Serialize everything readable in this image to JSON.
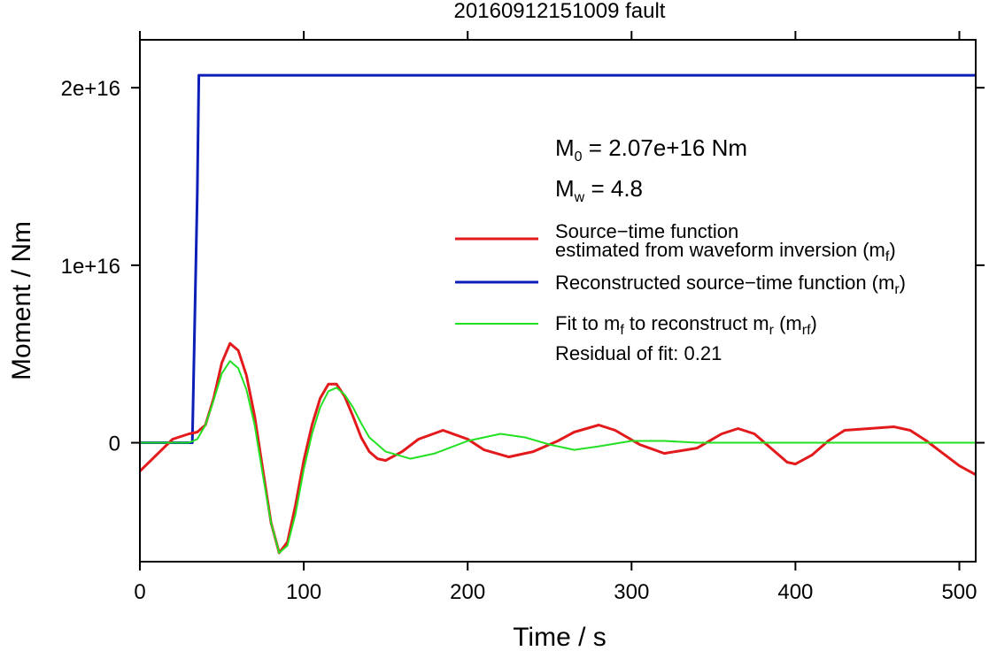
{
  "chart_data": {
    "type": "line",
    "title": "20160912151009 fault",
    "xlabel": "Time / s",
    "ylabel": "Moment / Nm",
    "xlim": [
      0,
      510
    ],
    "ylim": [
      -6700000000000000.0,
      2.27e+16
    ],
    "x_ticks": [
      0,
      100,
      200,
      300,
      400,
      500
    ],
    "x_tick_labels": [
      "0",
      "100",
      "200",
      "300",
      "400",
      "500"
    ],
    "y_ticks": [
      0,
      1e+16,
      2e+16
    ],
    "y_tick_labels": [
      "0",
      "1e+16",
      "2e+16"
    ],
    "grid": false,
    "legend_position": "right",
    "annotations": {
      "m0_prefix": "M",
      "m0_sub": "0",
      "m0_value": " = 2.07e+16 Nm",
      "mw_prefix": "M",
      "mw_sub": "w",
      "mw_value": " = 4.8",
      "residual": "Residual of fit: 0.21"
    },
    "legend": [
      {
        "color": "#e31a1c",
        "line1": "Source−time function",
        "line2_main": "estimated from waveform inversion (m",
        "line2_sub": "f",
        "line2_end": ")"
      },
      {
        "color": "#0b1fb8",
        "line1_main": "Reconstructed source−time function (m",
        "line1_sub": "r",
        "line1_end": ")"
      },
      {
        "color": "#22e022",
        "part1": "Fit to m",
        "sub1": "f",
        "part2": " to reconstruct m",
        "sub2": "r",
        "part3": " (m",
        "sub3": "rf",
        "part4": ")"
      }
    ],
    "series": [
      {
        "color": "#e31a1c",
        "x": [
          0,
          10,
          20,
          30,
          35,
          40,
          45,
          50,
          55,
          60,
          65,
          70,
          75,
          80,
          85,
          90,
          95,
          100,
          105,
          110,
          115,
          120,
          125,
          130,
          135,
          140,
          145,
          150,
          160,
          170,
          185,
          200,
          210,
          225,
          240,
          255,
          265,
          280,
          290,
          305,
          320,
          340,
          355,
          365,
          375,
          385,
          395,
          400,
          410,
          420,
          430,
          445,
          460,
          470,
          480,
          490,
          500,
          510
        ],
        "y": [
          -1600000000000000.0,
          -700000000000000.0,
          200000000000000.0,
          500000000000000.0,
          600000000000000.0,
          1000000000000000.0,
          2500000000000000.0,
          4500000000000000.0,
          5600000000000000.0,
          5200000000000000.0,
          3800000000000000.0,
          1500000000000000.0,
          -1500000000000000.0,
          -4500000000000000.0,
          -6200000000000000.0,
          -5600000000000000.0,
          -3500000000000000.0,
          -1000000000000000.0,
          1000000000000000.0,
          2500000000000000.0,
          3300000000000000.0,
          3300000000000000.0,
          2600000000000000.0,
          1500000000000000.0,
          300000000000000.0,
          -500000000000000.0,
          -900000000000000.0,
          -1000000000000000.0,
          -500000000000000.0,
          200000000000000.0,
          700000000000000.0,
          200000000000000.0,
          -400000000000000.0,
          -800000000000000.0,
          -500000000000000.0,
          100000000000000.0,
          600000000000000.0,
          1000000000000000.0,
          700000000000000.0,
          -100000000000000.0,
          -600000000000000.0,
          -300000000000000.0,
          500000000000000.0,
          800000000000000.0,
          500000000000000.0,
          -300000000000000.0,
          -1100000000000000.0,
          -1200000000000000.0,
          -700000000000000.0,
          100000000000000.0,
          700000000000000.0,
          800000000000000.0,
          900000000000000.0,
          700000000000000.0,
          100000000000000.0,
          -600000000000000.0,
          -1300000000000000.0,
          -1800000000000000.0
        ]
      },
      {
        "color": "#0b1fb8",
        "x": [
          0,
          32,
          35,
          36,
          510
        ],
        "y": [
          0,
          0,
          1.4e+16,
          2.07e+16,
          2.07e+16
        ]
      },
      {
        "color": "#22e022",
        "x": [
          0,
          30,
          35,
          40,
          45,
          50,
          55,
          60,
          65,
          70,
          75,
          80,
          85,
          90,
          95,
          100,
          105,
          110,
          115,
          120,
          125,
          130,
          135,
          140,
          150,
          165,
          180,
          200,
          220,
          235,
          250,
          265,
          280,
          300,
          320,
          340,
          360,
          380,
          400,
          420,
          450,
          480,
          510
        ],
        "y": [
          0,
          0,
          200000000000000.0,
          1000000000000000.0,
          2400000000000000.0,
          3900000000000000.0,
          4600000000000000.0,
          4200000000000000.0,
          3000000000000000.0,
          1000000000000000.0,
          -1800000000000000.0,
          -4500000000000000.0,
          -6200000000000000.0,
          -5800000000000000.0,
          -4000000000000000.0,
          -1500000000000000.0,
          500000000000000.0,
          2000000000000000.0,
          2900000000000000.0,
          3100000000000000.0,
          2700000000000000.0,
          2000000000000000.0,
          1100000000000000.0,
          300000000000000.0,
          -500000000000000.0,
          -900000000000000.0,
          -600000000000000.0,
          100000000000000.0,
          500000000000000.0,
          300000000000000.0,
          -100000000000000.0,
          -400000000000000.0,
          -200000000000000.0,
          100000000000000.0,
          100000000000000.0,
          0,
          0,
          0,
          0,
          0,
          0,
          0,
          0
        ]
      }
    ]
  }
}
